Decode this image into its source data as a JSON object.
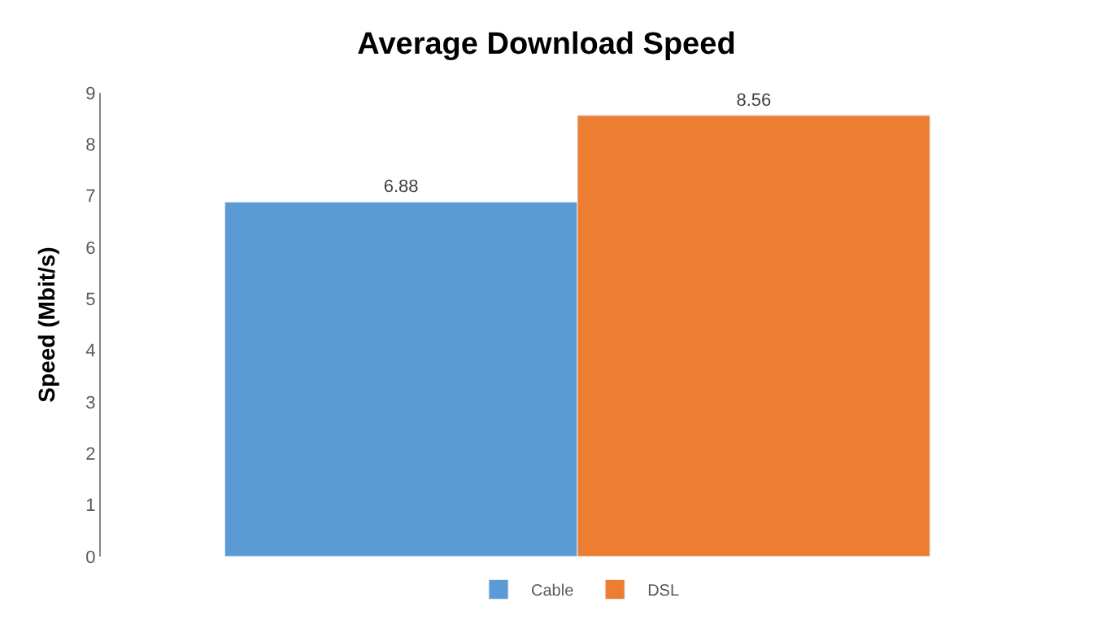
{
  "chart_data": {
    "type": "bar",
    "title": "Average Download Speed",
    "ylabel": "Speed (Mbit/s)",
    "categories": [
      null
    ],
    "series": [
      {
        "name": "Cable",
        "color": "#5b9bd5",
        "values": [
          6.88
        ]
      },
      {
        "name": "DSL",
        "color": "#ed7d31",
        "values": [
          8.56
        ]
      }
    ],
    "ylim": [
      0,
      9
    ],
    "yticks": [
      0,
      1,
      2,
      3,
      4,
      5,
      6,
      7,
      8,
      9
    ],
    "data_labels": true,
    "legend": "bottom",
    "grid": false
  }
}
